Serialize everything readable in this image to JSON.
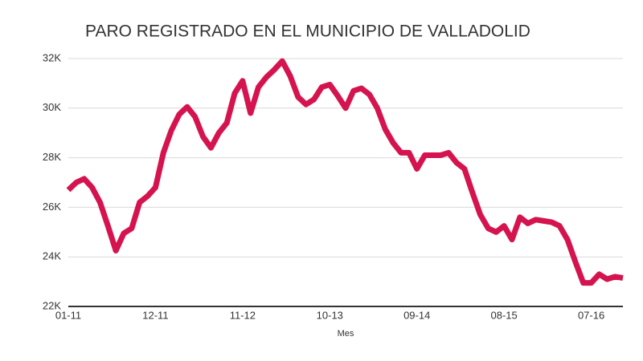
{
  "chart_data": {
    "type": "line",
    "title": "PARO REGISTRADO EN EL MUNICIPIO DE VALLADOLID",
    "xlabel": "Mes",
    "categories": [
      "01-11",
      null,
      null,
      null,
      null,
      null,
      null,
      null,
      null,
      null,
      null,
      "12-11",
      null,
      null,
      null,
      null,
      null,
      null,
      null,
      null,
      null,
      null,
      "11-12",
      null,
      null,
      null,
      null,
      null,
      null,
      null,
      null,
      null,
      null,
      "10-13",
      null,
      null,
      null,
      null,
      null,
      null,
      null,
      null,
      null,
      null,
      "09-14",
      null,
      null,
      null,
      null,
      null,
      null,
      null,
      null,
      null,
      null,
      "08-15",
      null,
      null,
      null,
      null,
      null,
      null,
      null,
      null,
      null,
      null,
      "07-16",
      null,
      null,
      null,
      null
    ],
    "series": [
      {
        "name": "Paro registrado",
        "color": "#d5134f",
        "values": [
          26700,
          27000,
          27150,
          26800,
          26200,
          25250,
          24250,
          24950,
          25150,
          26200,
          26450,
          26800,
          28200,
          29100,
          29750,
          30050,
          29650,
          28850,
          28400,
          29000,
          29400,
          30600,
          31100,
          29800,
          30850,
          31250,
          31550,
          31900,
          31300,
          30450,
          30150,
          30350,
          30850,
          30950,
          30500,
          30000,
          30700,
          30800,
          30550,
          30000,
          29150,
          28600,
          28200,
          28200,
          27550,
          28100,
          28100,
          28100,
          28200,
          27800,
          27550,
          26600,
          25700,
          25150,
          25000,
          25250,
          24700,
          25600,
          25350,
          25500,
          25450,
          25400,
          25250,
          24700,
          23800,
          22950,
          22950,
          23300,
          23100,
          23200,
          23150
        ]
      }
    ],
    "ylim": [
      22000,
      32000
    ],
    "yticks": [
      {
        "value": 22000,
        "label": "22K"
      },
      {
        "value": 24000,
        "label": "24K"
      },
      {
        "value": 26000,
        "label": "26K"
      },
      {
        "value": 28000,
        "label": "28K"
      },
      {
        "value": 30000,
        "label": "30K"
      },
      {
        "value": 32000,
        "label": "32K"
      }
    ],
    "grid": true
  }
}
